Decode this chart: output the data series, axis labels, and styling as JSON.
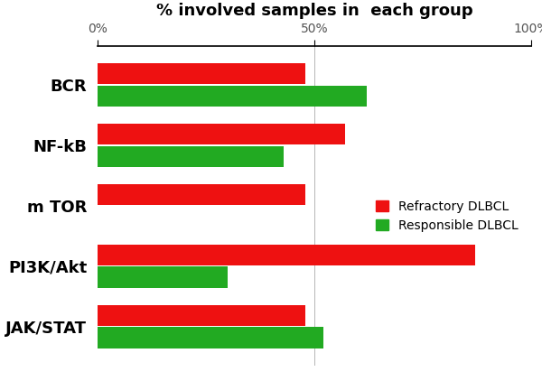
{
  "categories": [
    "BCR",
    "NF-kB",
    "m TOR",
    "PI3K/Akt",
    "JAK/STAT"
  ],
  "refractory": [
    48,
    57,
    48,
    87,
    48
  ],
  "responsible": [
    62,
    43,
    0,
    30,
    52
  ],
  "refractory_color": "#ee1111",
  "responsible_color": "#22aa22",
  "title": "% involved samples in  each group",
  "xlim": [
    0,
    100
  ],
  "xtick_labels": [
    "0%",
    "50%",
    "100%"
  ],
  "xtick_values": [
    0,
    50,
    100
  ],
  "legend_refractory": "Refractory DLBCL",
  "legend_responsible": "Responsible DLBCL",
  "bar_height": 0.35,
  "background_color": "#ffffff",
  "title_fontsize": 13,
  "label_fontsize": 13,
  "tick_fontsize": 10,
  "legend_fontsize": 10
}
